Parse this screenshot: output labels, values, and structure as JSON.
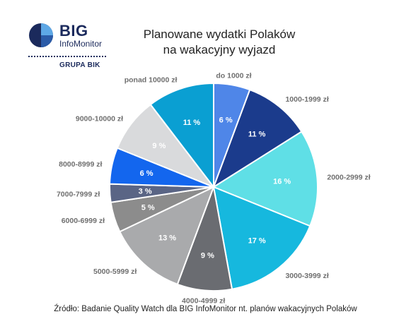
{
  "logo": {
    "big": "BIG",
    "infomonitor": "InfoMonitor",
    "grupa": "GRUPA BIK",
    "colors": {
      "dark": "#1b2a5c",
      "mid": "#2b5ba8",
      "light": "#5ea8e6"
    }
  },
  "chart_data": {
    "type": "pie",
    "title_lines": [
      "Planowane wydatki Polaków",
      "na wakacyjny wyjazd"
    ],
    "slices": [
      {
        "label": "do 1000 zł",
        "value": 6,
        "display": "6 %",
        "color": "#4f86e8"
      },
      {
        "label": "1000-1999 zł",
        "value": 11,
        "display": "11 %",
        "color": "#1b3b8c"
      },
      {
        "label": "2000-2999 zł",
        "value": 16,
        "display": "16 %",
        "color": "#5fdfe6"
      },
      {
        "label": "3000-3999 zł",
        "value": 17,
        "display": "17 %",
        "color": "#16b8de"
      },
      {
        "label": "4000-4999 zł",
        "value": 9,
        "display": "9 %",
        "color": "#6a6c71"
      },
      {
        "label": "5000-5999 zł",
        "value": 13,
        "display": "13 %",
        "color": "#a9aaac"
      },
      {
        "label": "6000-6999 zł",
        "value": 5,
        "display": "5 %",
        "color": "#8c8c8c"
      },
      {
        "label": "7000-7999 zł",
        "value": 3,
        "display": "3 %",
        "color": "#5a6585"
      },
      {
        "label": "8000-8999 zł",
        "value": 6,
        "display": "6 %",
        "color": "#1366ee"
      },
      {
        "label": "9000-10000 zł",
        "value": 9,
        "display": "9 %",
        "color": "#d9dadc"
      },
      {
        "label": "ponad 10000 zł",
        "value": 11,
        "display": "11 %",
        "color": "#0a9fd2"
      }
    ],
    "label_color": "#6f6f6f",
    "percent_color": "#ffffff"
  },
  "source": "Źródło: Badanie Quality Watch dla BIG InfoMonitor nt. planów wakacyjnych Polaków"
}
